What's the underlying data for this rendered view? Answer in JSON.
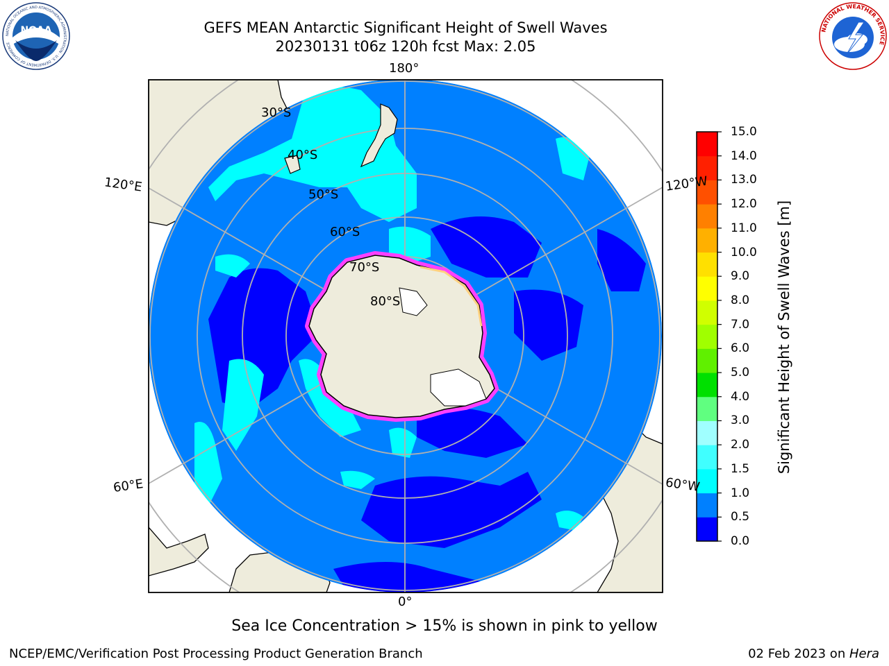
{
  "header": {
    "title_line1": "GEFS MEAN Antarctic Significant Height of Swell Waves",
    "title_line2": "20230131 t06z 120h fcst   Max: 2.05"
  },
  "logos": {
    "noaa": "NOAA",
    "noaa_ring_text": "NATIONAL OCEANIC AND ATMOSPHERIC ADMINISTRATION · U.S. DEPARTMENT OF COMMERCE",
    "nws_ring_text": "NATIONAL WEATHER SERVICE"
  },
  "map": {
    "longitude_labels": {
      "top": "180°",
      "bottom": "0°",
      "upper_left": "120°E",
      "upper_right": "120°W",
      "lower_left": "60°E",
      "lower_right": "60°W"
    },
    "latitude_labels": [
      "30°S",
      "40°S",
      "50°S",
      "60°S",
      "70°S",
      "80°S"
    ],
    "colors": {
      "ocean_0_05": "#0000ff",
      "ocean_05_10": "#0080ff",
      "ocean_10_15": "#00ffff",
      "ocean_15_20": "#40ffff",
      "land": "#eeecdc",
      "ice_edge": "#ff40ff"
    }
  },
  "colorbar": {
    "title": "Significant Height of Swell Waves [m]",
    "tick_labels": [
      "0.0",
      "0.5",
      "1.0",
      "1.5",
      "2.0",
      "3.0",
      "4.0",
      "5.0",
      "6.0",
      "7.0",
      "8.0",
      "9.0",
      "10.0",
      "11.0",
      "12.0",
      "13.0",
      "14.0",
      "15.0"
    ],
    "colors": [
      "#0000ff",
      "#0080ff",
      "#00ffff",
      "#40ffff",
      "#a0ffff",
      "#60ff80",
      "#00e000",
      "#60f000",
      "#a0ff00",
      "#d0ff00",
      "#ffff00",
      "#ffe000",
      "#ffb000",
      "#ff8000",
      "#ff5000",
      "#ff2000",
      "#ff0000"
    ]
  },
  "caption": "Sea Ice Concentration > 15% is shown in pink to yellow",
  "footer": {
    "left": "NCEP/EMC/Verification Post Processing Product Generation Branch",
    "date": "02 Feb 2023 on ",
    "machine": "Hera"
  }
}
